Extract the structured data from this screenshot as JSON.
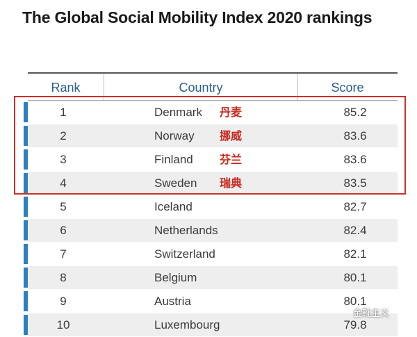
{
  "title": "The Global Social Mobility Index 2020 rankings",
  "colors": {
    "accent_bar": "#2e7fc0",
    "header_text": "#2b5e8c",
    "highlight_box": "#cf2f2b",
    "chinese_label": "#c8281e"
  },
  "watermark": "金靴主义",
  "chart_data": {
    "type": "table",
    "title": "The Global Social Mobility Index 2020 rankings",
    "columns": [
      "Rank",
      "Country",
      "Score"
    ],
    "rows": [
      {
        "rank": "1",
        "country": "Denmark",
        "cn": "丹麦",
        "score": "85.2"
      },
      {
        "rank": "2",
        "country": "Norway",
        "cn": "挪威",
        "score": "83.6"
      },
      {
        "rank": "3",
        "country": "Finland",
        "cn": "芬兰",
        "score": "83.6"
      },
      {
        "rank": "4",
        "country": "Sweden",
        "cn": "瑞典",
        "score": "83.5"
      },
      {
        "rank": "5",
        "country": "Iceland",
        "score": "82.7"
      },
      {
        "rank": "6",
        "country": "Netherlands",
        "score": "82.4"
      },
      {
        "rank": "7",
        "country": "Switzerland",
        "score": "82.1"
      },
      {
        "rank": "8",
        "country": "Belgium",
        "score": "80.1"
      },
      {
        "rank": "9",
        "country": "Austria",
        "score": "80.1"
      },
      {
        "rank": "10",
        "country": "Luxembourg",
        "score": "79.8"
      }
    ],
    "highlighted_ranks": [
      1,
      2,
      3,
      4
    ]
  }
}
